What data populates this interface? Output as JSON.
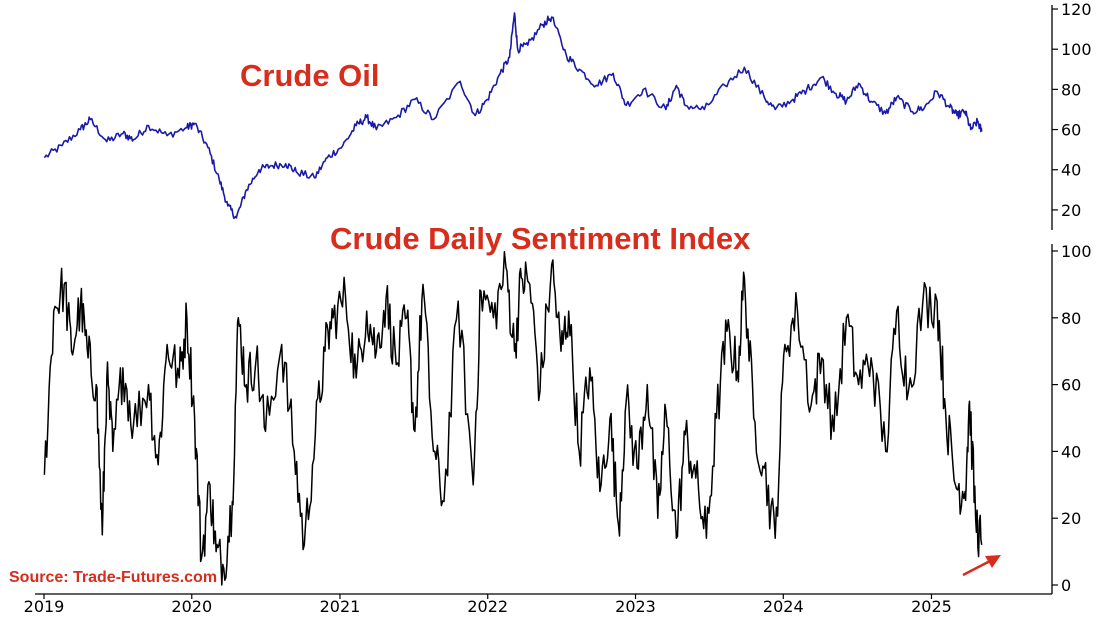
{
  "source": "Source: Trade-Futures.com",
  "colors": {
    "title": "#d62d1c",
    "crude_oil_line": "#1a1aa8",
    "sentiment_line": "#000000",
    "annotation_arrow": "#d62d1c"
  },
  "chart_data": [
    {
      "type": "line",
      "title": "Crude Oil",
      "xlabel": "",
      "ylabel": "",
      "x_ticks": [
        "2019",
        "2020",
        "2021",
        "2022",
        "2023",
        "2024",
        "2025"
      ],
      "y_ticks": [
        20,
        40,
        60,
        80,
        100,
        120
      ],
      "xlim": [
        "2019-01-01",
        "2025-10-01"
      ],
      "ylim": [
        10,
        122
      ],
      "grid": false,
      "y_axis_position": "right",
      "x": [
        "2019-01-02",
        "2019-02-15",
        "2019-04-01",
        "2019-04-25",
        "2019-06-05",
        "2019-07-15",
        "2019-08-10",
        "2019-09-16",
        "2019-11-01",
        "2019-12-20",
        "2020-01-08",
        "2020-02-10",
        "2020-03-09",
        "2020-03-30",
        "2020-04-20",
        "2020-05-15",
        "2020-06-15",
        "2020-07-15",
        "2020-08-20",
        "2020-09-15",
        "2020-10-30",
        "2020-12-01",
        "2021-01-08",
        "2021-02-10",
        "2021-03-08",
        "2021-04-01",
        "2021-05-20",
        "2021-07-05",
        "2021-08-20",
        "2021-10-25",
        "2021-12-01",
        "2021-12-31",
        "2022-02-01",
        "2022-02-24",
        "2022-03-08",
        "2022-03-16",
        "2022-04-10",
        "2022-05-15",
        "2022-06-08",
        "2022-07-14",
        "2022-08-15",
        "2022-09-26",
        "2022-11-07",
        "2022-12-09",
        "2023-01-20",
        "2023-03-17",
        "2023-04-12",
        "2023-05-04",
        "2023-06-20",
        "2023-08-10",
        "2023-09-27",
        "2023-11-15",
        "2023-12-12",
        "2024-01-25",
        "2024-02-28",
        "2024-04-05",
        "2024-05-10",
        "2024-06-05",
        "2024-07-05",
        "2024-08-05",
        "2024-09-10",
        "2024-10-07",
        "2024-11-15",
        "2024-12-15",
        "2025-01-15",
        "2025-02-15",
        "2025-03-05",
        "2025-03-25",
        "2025-04-08",
        "2025-04-25",
        "2025-05-05"
      ],
      "series": [
        {
          "name": "",
          "values": [
            46,
            52,
            60,
            65,
            54,
            58,
            55,
            62,
            57,
            61,
            63,
            51,
            35,
            22,
            16,
            30,
            40,
            42,
            43,
            39,
            36,
            46,
            52,
            62,
            66,
            60,
            66,
            75,
            65,
            84,
            67,
            75,
            88,
            96,
            118,
            100,
            102,
            112,
            116,
            97,
            90,
            82,
            88,
            72,
            80,
            70,
            82,
            72,
            70,
            82,
            91,
            76,
            70,
            75,
            80,
            86,
            78,
            74,
            83,
            74,
            68,
            76,
            69,
            71,
            79,
            71,
            67,
            69,
            60,
            64,
            59
          ]
        }
      ]
    },
    {
      "type": "line",
      "title": "Crude Daily Sentiment Index",
      "xlabel": "",
      "ylabel": "",
      "x_ticks": [
        "2019",
        "2020",
        "2021",
        "2022",
        "2023",
        "2024",
        "2025"
      ],
      "y_ticks": [
        0,
        20,
        40,
        60,
        80,
        100
      ],
      "xlim": [
        "2019-01-01",
        "2025-10-01"
      ],
      "ylim": [
        0,
        100
      ],
      "grid": false,
      "y_axis_position": "right",
      "annotation": "red arrow pointing to latest value",
      "x": [
        "2019-01-02",
        "2019-01-25",
        "2019-02-20",
        "2019-03-10",
        "2019-04-01",
        "2019-04-20",
        "2019-05-10",
        "2019-05-25",
        "2019-06-05",
        "2019-06-20",
        "2019-07-15",
        "2019-08-10",
        "2019-09-16",
        "2019-10-10",
        "2019-11-01",
        "2019-12-01",
        "2019-12-20",
        "2020-01-08",
        "2020-01-25",
        "2020-02-15",
        "2020-03-01",
        "2020-03-20",
        "2020-04-10",
        "2020-04-25",
        "2020-05-15",
        "2020-06-08",
        "2020-07-01",
        "2020-08-10",
        "2020-09-10",
        "2020-10-05",
        "2020-11-01",
        "2020-11-25",
        "2020-12-15",
        "2021-01-15",
        "2021-02-10",
        "2021-03-08",
        "2021-04-01",
        "2021-04-25",
        "2021-05-20",
        "2021-06-15",
        "2021-07-05",
        "2021-07-25",
        "2021-08-20",
        "2021-09-15",
        "2021-10-20",
        "2021-11-26",
        "2021-12-15",
        "2022-01-15",
        "2022-02-15",
        "2022-03-08",
        "2022-03-25",
        "2022-04-15",
        "2022-05-10",
        "2022-06-08",
        "2022-07-01",
        "2022-07-20",
        "2022-08-15",
        "2022-09-10",
        "2022-10-05",
        "2022-10-30",
        "2022-11-20",
        "2022-12-09",
        "2023-01-05",
        "2023-01-30",
        "2023-02-25",
        "2023-03-17",
        "2023-04-12",
        "2023-05-04",
        "2023-05-30",
        "2023-06-25",
        "2023-07-20",
        "2023-08-15",
        "2023-09-10",
        "2023-09-27",
        "2023-10-20",
        "2023-11-15",
        "2023-12-12",
        "2024-01-05",
        "2024-02-05",
        "2024-03-10",
        "2024-04-05",
        "2024-05-05",
        "2024-06-05",
        "2024-07-05",
        "2024-08-05",
        "2024-09-10",
        "2024-10-07",
        "2024-11-05",
        "2024-12-10",
        "2025-01-15",
        "2025-02-05",
        "2025-03-01",
        "2025-03-25",
        "2025-04-05",
        "2025-04-20",
        "2025-05-05"
      ],
      "series": [
        {
          "name": "",
          "values": [
            33,
            82,
            90,
            70,
            84,
            68,
            60,
            15,
            62,
            40,
            65,
            48,
            60,
            36,
            72,
            62,
            80,
            50,
            8,
            30,
            10,
            5,
            25,
            80,
            60,
            68,
            46,
            72,
            40,
            12,
            45,
            70,
            80,
            86,
            62,
            82,
            70,
            86,
            66,
            80,
            46,
            90,
            40,
            25,
            85,
            30,
            88,
            80,
            95,
            70,
            92,
            90,
            58,
            96,
            70,
            82,
            40,
            65,
            28,
            50,
            18,
            55,
            35,
            60,
            20,
            52,
            14,
            45,
            32,
            14,
            50,
            76,
            64,
            92,
            50,
            35,
            14,
            72,
            82,
            54,
            68,
            46,
            80,
            60,
            68,
            40,
            82,
            58,
            84,
            85,
            52,
            30,
            28,
            55,
            20,
            12
          ]
        }
      ]
    }
  ]
}
